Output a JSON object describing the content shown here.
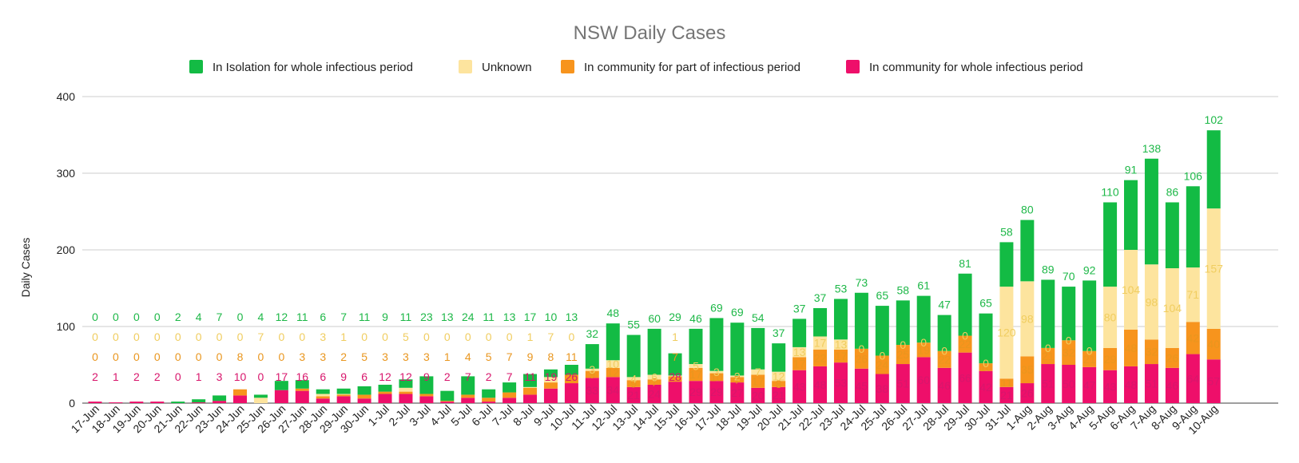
{
  "chart_data": {
    "type": "bar",
    "stacked": true,
    "title": "NSW Daily Cases",
    "ylabel": "Daily Cases",
    "xlabel": "",
    "ylim": [
      0,
      400
    ],
    "yticks": [
      0,
      100,
      200,
      300,
      400
    ],
    "grid": true,
    "legend_position": "top",
    "categories": [
      "17-Jun",
      "18-Jun",
      "19-Jun",
      "20-Jun",
      "21-Jun",
      "22-Jun",
      "23-Jun",
      "24-Jun",
      "25-Jun",
      "26-Jun",
      "27-Jun",
      "28-Jun",
      "29-Jun",
      "30-Jun",
      "1-Jul",
      "2-Jul",
      "3-Jul",
      "4-Jul",
      "5-Jul",
      "6-Jul",
      "7-Jul",
      "8-Jul",
      "9-Jul",
      "10-Jul",
      "11-Jul",
      "12-Jul",
      "13-Jul",
      "14-Jul",
      "15-Jul",
      "16-Jul",
      "17-Jul",
      "18-Jul",
      "19-Jul",
      "20-Jul",
      "21-Jul",
      "22-Jul",
      "23-Jul",
      "24-Jul",
      "25-Jul",
      "26-Jul",
      "27-Jul",
      "28-Jul",
      "29-Jul",
      "30-Jul",
      "31-Jul",
      "1-Aug",
      "2-Aug",
      "3-Aug",
      "4-Aug",
      "5-Aug",
      "6-Aug",
      "7-Aug",
      "8-Aug",
      "9-Aug",
      "10-Aug"
    ],
    "series": [
      {
        "name": "In community for whole infectious period",
        "color": "#ee0f6a",
        "label_color": "#d8166c",
        "values": [
          2,
          1,
          2,
          2,
          0,
          1,
          3,
          10,
          0,
          17,
          16,
          6,
          9,
          6,
          12,
          12,
          9,
          2,
          7,
          2,
          7,
          11,
          19,
          26,
          33,
          34,
          21,
          24,
          28,
          29,
          29,
          27,
          20,
          21,
          43,
          48,
          53,
          45,
          38,
          51,
          60,
          46,
          66,
          42,
          21,
          26,
          51,
          50,
          47,
          43,
          48,
          51,
          46,
          64,
          57
        ]
      },
      {
        "name": "In community for part of infectious period",
        "color": "#f7941d",
        "label_color": "#e9961e",
        "values": [
          0,
          0,
          0,
          0,
          0,
          0,
          0,
          8,
          0,
          0,
          3,
          3,
          2,
          5,
          3,
          3,
          3,
          1,
          4,
          5,
          7,
          9,
          8,
          11,
          9,
          12,
          9,
          7,
          7,
          17,
          10,
          7,
          17,
          8,
          17,
          22,
          17,
          26,
          24,
          25,
          19,
          22,
          22,
          10,
          11,
          35,
          21,
          32,
          21,
          29,
          48,
          32,
          26,
          42,
          40
        ]
      },
      {
        "name": "Unknown",
        "color": "#fde49e",
        "label_color": "#f0cd60",
        "values": [
          0,
          0,
          0,
          0,
          0,
          0,
          0,
          0,
          7,
          0,
          0,
          3,
          1,
          0,
          0,
          5,
          0,
          0,
          0,
          0,
          0,
          1,
          7,
          0,
          3,
          10,
          4,
          6,
          1,
          5,
          3,
          2,
          7,
          12,
          13,
          17,
          13,
          0,
          0,
          0,
          0,
          0,
          0,
          0,
          120,
          98,
          0,
          0,
          0,
          80,
          104,
          98,
          104,
          71,
          157
        ]
      },
      {
        "name": "In Isolation for whole infectious period",
        "color": "#13bb44",
        "label_color": "#1eb848",
        "values": [
          0,
          0,
          0,
          0,
          2,
          4,
          7,
          0,
          4,
          12,
          11,
          6,
          7,
          11,
          9,
          11,
          23,
          13,
          24,
          11,
          13,
          17,
          10,
          13,
          32,
          48,
          55,
          60,
          29,
          46,
          69,
          69,
          54,
          37,
          37,
          37,
          53,
          73,
          65,
          58,
          61,
          47,
          81,
          65,
          58,
          80,
          89,
          70,
          92,
          110,
          91,
          138,
          86,
          106,
          102
        ]
      }
    ]
  }
}
